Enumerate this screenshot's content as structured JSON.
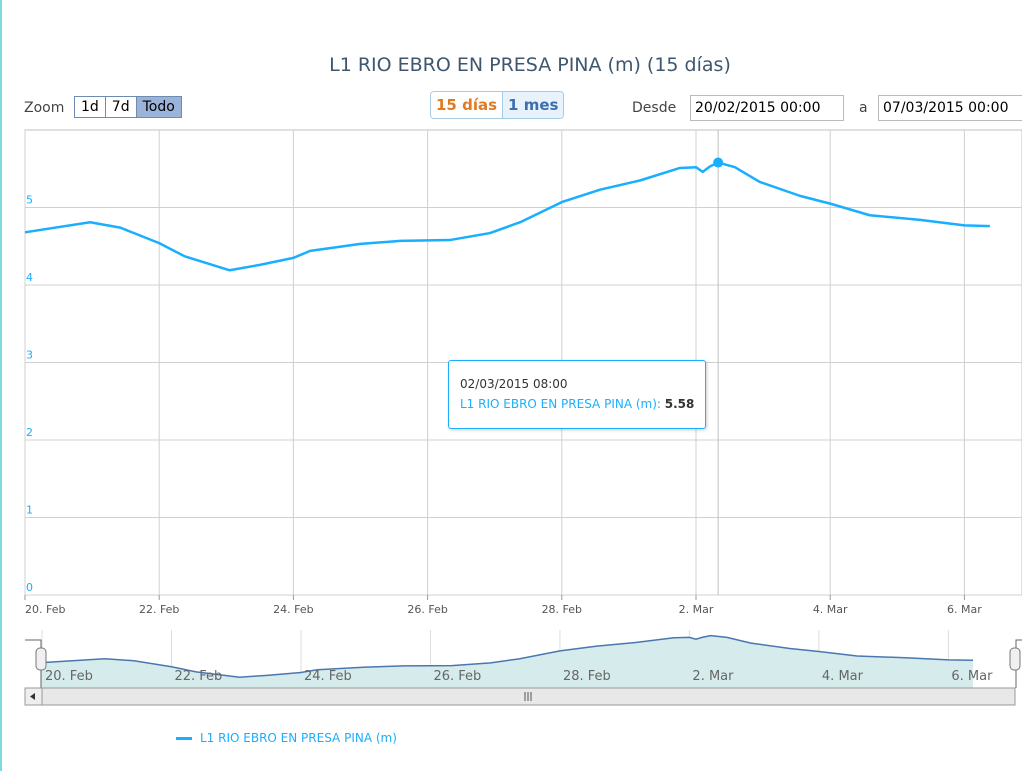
{
  "header": {
    "zoom_label": "Zoom",
    "zoom_buttons": [
      "1d",
      "7d",
      "Todo"
    ],
    "range_buttons": [
      "15 días",
      "1 mes"
    ],
    "from_label": "Desde",
    "from_value": "20/02/2015 00:00",
    "to_label": "a",
    "to_value": "07/03/2015 00:00"
  },
  "tooltip": {
    "date": "02/03/2015 08:00",
    "series": "L1 RIO EBRO EN PRESA PINA (m)",
    "value": "5.58"
  },
  "colors": {
    "series": "#1aaeff",
    "navigator_fill": "#d6ecec",
    "navigator_line": "#4a77b0"
  },
  "chart_data": {
    "type": "line",
    "title": "L1 RIO EBRO EN PRESA PINA (m) (15 días)",
    "xlabel": "",
    "ylabel": "",
    "x_unit": "days since 20 Feb 2015",
    "xlim": [
      0,
      15.35
    ],
    "ylim": [
      0,
      6
    ],
    "yticks": [
      0,
      1,
      2,
      3,
      4,
      5
    ],
    "xticks": [
      {
        "x": 0,
        "label": "20. Feb"
      },
      {
        "x": 2,
        "label": "22. Feb"
      },
      {
        "x": 4,
        "label": "24. Feb"
      },
      {
        "x": 6,
        "label": "26. Feb"
      },
      {
        "x": 8,
        "label": "28. Feb"
      },
      {
        "x": 10,
        "label": "2. Mar"
      },
      {
        "x": 12,
        "label": "4. Mar"
      },
      {
        "x": 14,
        "label": "6. Mar"
      }
    ],
    "legend": "bottom-left",
    "grid": true,
    "series": [
      {
        "name": "L1 RIO EBRO EN PRESA PINA (m)",
        "x": [
          0,
          0.97,
          1.42,
          2.0,
          2.38,
          3.05,
          3.5,
          4.0,
          4.25,
          5.0,
          5.59,
          6.33,
          6.93,
          7.38,
          8.0,
          8.57,
          9.17,
          9.76,
          10.0,
          10.1,
          10.21,
          10.33,
          10.58,
          10.95,
          11.55,
          12.0,
          12.59,
          13.34,
          14.0,
          14.38
        ],
        "y": [
          4.68,
          4.81,
          4.74,
          4.54,
          4.37,
          4.19,
          4.26,
          4.35,
          4.44,
          4.53,
          4.57,
          4.58,
          4.67,
          4.81,
          5.07,
          5.23,
          5.35,
          5.51,
          5.52,
          5.46,
          5.53,
          5.58,
          5.52,
          5.33,
          5.15,
          5.05,
          4.9,
          4.84,
          4.77,
          4.76
        ]
      }
    ],
    "highlight": {
      "x": 10.33,
      "y": 5.58
    }
  },
  "legend": {
    "label": "L1 RIO EBRO EN PRESA PINA (m)"
  }
}
